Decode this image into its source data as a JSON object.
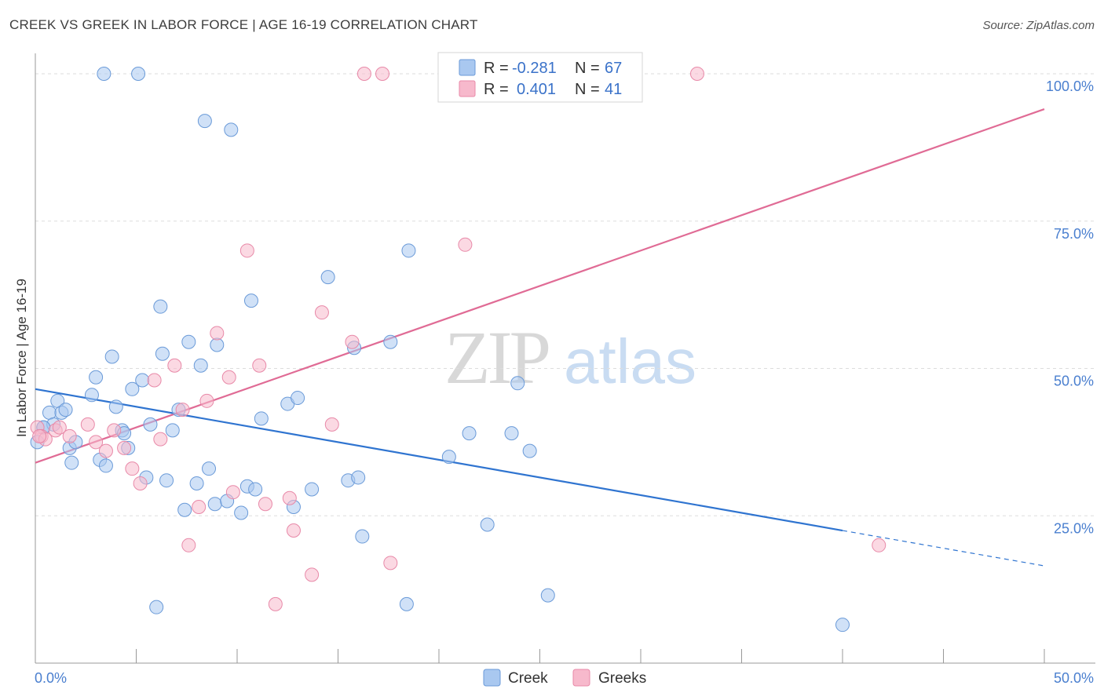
{
  "title": "CREEK VS GREEK IN LABOR FORCE | AGE 16-19 CORRELATION CHART",
  "source": "Source: ZipAtlas.com",
  "watermark": {
    "zip": "ZIP",
    "atlas": "atlas"
  },
  "legend_top": [
    {
      "r_label": "R =",
      "r_value": "-0.281",
      "n_label": "N =",
      "n_value": "67",
      "color": "#a9c8f0",
      "stroke": "#6a9ad8"
    },
    {
      "r_label": "R =",
      "r_value": "0.401",
      "n_label": "N =",
      "n_value": "41",
      "color": "#f7b9cc",
      "stroke": "#e889a8"
    }
  ],
  "legend_bottom": [
    {
      "label": "Creek",
      "color": "#a9c8f0",
      "stroke": "#6a9ad8"
    },
    {
      "label": "Greeks",
      "color": "#f7b9cc",
      "stroke": "#e889a8"
    }
  ],
  "colors": {
    "creek_fill": "#a9c8f0",
    "creek_stroke": "#6a9ad8",
    "creek_line": "#2f74d0",
    "greek_fill": "#f7b9cc",
    "greek_stroke": "#e889a8",
    "greek_line": "#e06b95",
    "grid": "#dddddd",
    "tick_label": "#4a7fcf"
  },
  "chart_data": {
    "type": "scatter",
    "title": "CREEK VS GREEK IN LABOR FORCE | AGE 16-19 CORRELATION CHART",
    "xlabel": "",
    "ylabel": "In Labor Force | Age 16-19",
    "xlim": [
      0,
      50
    ],
    "ylim": [
      0,
      102
    ],
    "x_tick_labels": [
      "0.0%",
      "50.0%"
    ],
    "y_ticks": [
      25,
      50,
      75,
      100
    ],
    "y_tick_labels": [
      "25.0%",
      "50.0%",
      "75.0%",
      "100.0%"
    ],
    "grid": "horizontal dashed",
    "legend_placement": "top-center and bottom-center",
    "series": [
      {
        "name": "Creek",
        "r": -0.281,
        "n": 67,
        "trend": {
          "x0": 0,
          "y0": 46.5,
          "x1": 40,
          "y1": 22.5,
          "dashed_to_x": 50,
          "dashed_to_y": 16.5
        },
        "points": [
          [
            0.1,
            37.5
          ],
          [
            0.4,
            40
          ],
          [
            0.7,
            42.5
          ],
          [
            0.9,
            40.5
          ],
          [
            1.1,
            44.5
          ],
          [
            1.3,
            42.5
          ],
          [
            1.5,
            43
          ],
          [
            1.7,
            36.5
          ],
          [
            1.8,
            34
          ],
          [
            2.0,
            37.5
          ],
          [
            2.8,
            45.5
          ],
          [
            3.0,
            48.5
          ],
          [
            3.2,
            34.5
          ],
          [
            3.5,
            33.5
          ],
          [
            3.8,
            52
          ],
          [
            4.0,
            43.5
          ],
          [
            4.3,
            39.5
          ],
          [
            4.4,
            39
          ],
          [
            4.6,
            36.5
          ],
          [
            4.8,
            46.5
          ],
          [
            5.3,
            48
          ],
          [
            5.5,
            31.5
          ],
          [
            5.7,
            40.5
          ],
          [
            6.0,
            9.5
          ],
          [
            6.2,
            60.5
          ],
          [
            6.3,
            52.5
          ],
          [
            6.5,
            31
          ],
          [
            6.8,
            39.5
          ],
          [
            7.1,
            43
          ],
          [
            7.4,
            26
          ],
          [
            7.6,
            54.5
          ],
          [
            8.0,
            30.5
          ],
          [
            8.2,
            50.5
          ],
          [
            8.6,
            33
          ],
          [
            8.9,
            27
          ],
          [
            9.0,
            54
          ],
          [
            9.5,
            27.5
          ],
          [
            10.2,
            25.5
          ],
          [
            10.5,
            30
          ],
          [
            10.7,
            61.5
          ],
          [
            10.9,
            29.5
          ],
          [
            11.2,
            41.5
          ],
          [
            12.5,
            44
          ],
          [
            12.8,
            26.5
          ],
          [
            13.0,
            45
          ],
          [
            13.7,
            29.5
          ],
          [
            14.5,
            65.5
          ],
          [
            15.5,
            31
          ],
          [
            15.8,
            53.5
          ],
          [
            16.0,
            31.5
          ],
          [
            16.2,
            21.5
          ],
          [
            17.6,
            54.5
          ],
          [
            18.4,
            10
          ],
          [
            18.5,
            70
          ],
          [
            20.5,
            35
          ],
          [
            21.5,
            39
          ],
          [
            22.4,
            23.5
          ],
          [
            23.6,
            39
          ],
          [
            23.9,
            47.5
          ],
          [
            24.5,
            36
          ],
          [
            25.4,
            11.5
          ],
          [
            40.0,
            6.5
          ],
          [
            5.1,
            100
          ],
          [
            8.4,
            92
          ],
          [
            9.7,
            90.5
          ],
          [
            3.4,
            100
          ],
          [
            0.4,
            40
          ]
        ]
      },
      {
        "name": "Greeks",
        "r": 0.401,
        "n": 41,
        "trend": {
          "x0": 0,
          "y0": 34,
          "x1": 50,
          "y1": 94
        },
        "points": [
          [
            0.1,
            40
          ],
          [
            0.3,
            38.5
          ],
          [
            0.5,
            38
          ],
          [
            1.0,
            39.5
          ],
          [
            1.2,
            40
          ],
          [
            1.7,
            38.5
          ],
          [
            2.6,
            40.5
          ],
          [
            3.0,
            37.5
          ],
          [
            3.5,
            36
          ],
          [
            3.9,
            39.5
          ],
          [
            4.4,
            36.5
          ],
          [
            4.8,
            33
          ],
          [
            5.2,
            30.5
          ],
          [
            5.9,
            48
          ],
          [
            6.2,
            38
          ],
          [
            6.9,
            50.5
          ],
          [
            7.3,
            43
          ],
          [
            7.6,
            20
          ],
          [
            8.1,
            26.5
          ],
          [
            8.5,
            44.5
          ],
          [
            9.0,
            56
          ],
          [
            9.6,
            48.5
          ],
          [
            9.8,
            29
          ],
          [
            10.5,
            70
          ],
          [
            11.1,
            50.5
          ],
          [
            11.4,
            27
          ],
          [
            11.9,
            10
          ],
          [
            12.6,
            28
          ],
          [
            12.8,
            22.5
          ],
          [
            13.7,
            15
          ],
          [
            14.2,
            59.5
          ],
          [
            14.7,
            40.5
          ],
          [
            15.7,
            54.5
          ],
          [
            16.3,
            100
          ],
          [
            17.2,
            100
          ],
          [
            17.6,
            17
          ],
          [
            20.5,
            100
          ],
          [
            21.3,
            71
          ],
          [
            32.8,
            100
          ],
          [
            41.8,
            20
          ],
          [
            0.2,
            38.5
          ]
        ]
      }
    ]
  }
}
